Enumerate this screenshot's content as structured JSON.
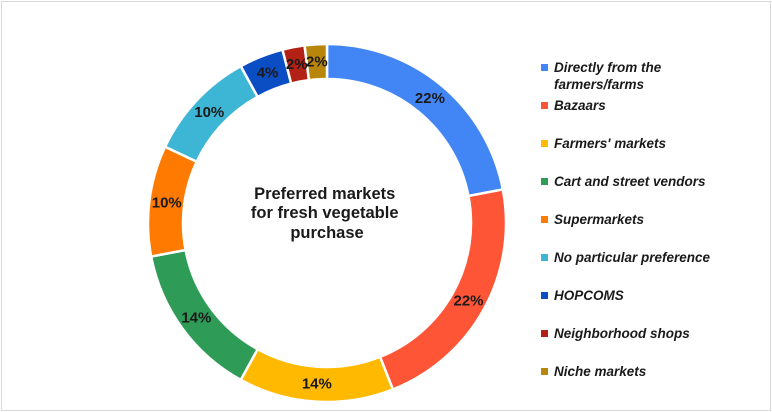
{
  "chart_data": {
    "type": "pie",
    "title": "Preferred markets for fresh vegetable purchase",
    "title_lines": [
      "Preferred markets",
      "for fresh vegetable",
      "purchase"
    ],
    "donut": true,
    "legend_position": "right",
    "categories": [
      "Directly from the farmers/farms",
      "Bazaars",
      "Farmers' markets",
      "Cart and street vendors",
      "Supermarkets",
      "No particular preference",
      "HOPCOMS",
      "Neighborhood shops",
      "Niche markets"
    ],
    "values": [
      22,
      22,
      14,
      14,
      10,
      10,
      4,
      2,
      2
    ],
    "data_labels": [
      "22%",
      "22%",
      "14%",
      "14%",
      "10%",
      "10%",
      "4%",
      "2%",
      "2%"
    ],
    "colors": [
      "#4285F4",
      "#FF5537",
      "#FFB900",
      "#2E9B57",
      "#FF7A00",
      "#3DB5D4",
      "#0B4EC4",
      "#B32015",
      "#B8860B"
    ]
  }
}
